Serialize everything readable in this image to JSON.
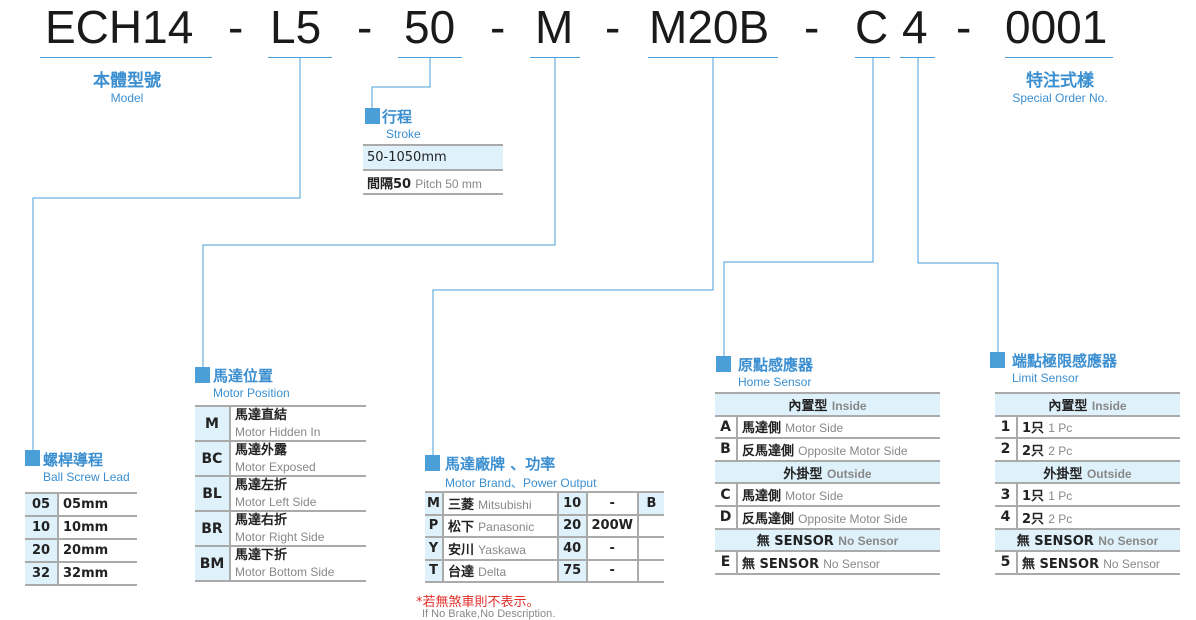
{
  "code": {
    "parts": [
      "ECH14",
      "-",
      "L5",
      "-",
      "50",
      "-",
      "M",
      "-",
      "M20B",
      "-",
      "C",
      "4",
      "-",
      "0001"
    ]
  },
  "model": {
    "zh": "本體型號",
    "en": "Model"
  },
  "special": {
    "zh": "特注式樣",
    "en": "Special Order No."
  },
  "stroke": {
    "zh": "行程",
    "en": "Stroke",
    "rows": [
      {
        "a": "50-1050mm"
      },
      {
        "a": "間隔50",
        "b": "Pitch 50 mm"
      }
    ]
  },
  "lead": {
    "zh": "螺桿導程",
    "en": "Ball Screw Lead",
    "rows": [
      [
        "05",
        "05mm"
      ],
      [
        "10",
        "10mm"
      ],
      [
        "20",
        "20mm"
      ],
      [
        "32",
        "32mm"
      ]
    ]
  },
  "position": {
    "zh": "馬達位置",
    "en": "Motor Position",
    "rows": [
      {
        "k": "M",
        "zh": "馬達直結",
        "en": "Motor Hidden In"
      },
      {
        "k": "BC",
        "zh": "馬達外露",
        "en": "Motor Exposed"
      },
      {
        "k": "BL",
        "zh": "馬達左折",
        "en": "Motor Left Side"
      },
      {
        "k": "BR",
        "zh": "馬達右折",
        "en": "Motor Right Side"
      },
      {
        "k": "BM",
        "zh": "馬達下折",
        "en": "Motor Bottom Side"
      }
    ]
  },
  "brand": {
    "zh": "馬達廠牌 、功率",
    "en": "Motor Brand、Power Output",
    "brake": "B",
    "rows": [
      {
        "k": "M",
        "zh": "三菱",
        "en": "Mitsubishi",
        "p": "10",
        "w": "-"
      },
      {
        "k": "P",
        "zh": "松下",
        "en": "Panasonic",
        "p": "20",
        "w": "200W"
      },
      {
        "k": "Y",
        "zh": "安川",
        "en": "Yaskawa",
        "p": "40",
        "w": "-"
      },
      {
        "k": "T",
        "zh": "台達",
        "en": "Delta",
        "p": "75",
        "w": "-"
      }
    ],
    "note_zh": "*若無煞車則不表示。",
    "note_en": "If No Brake,No Description."
  },
  "home": {
    "zh": "原點感應器",
    "en": "Home Sensor",
    "rows": [
      {
        "h": true,
        "zh": "內置型",
        "en": "Inside"
      },
      {
        "k": "A",
        "zh": "馬達側",
        "en": "Motor Side"
      },
      {
        "k": "B",
        "zh": "反馬達側",
        "en": "Opposite Motor Side"
      },
      {
        "h": true,
        "zh": "外掛型",
        "en": "Outside"
      },
      {
        "k": "C",
        "zh": "馬達側",
        "en": "Motor Side"
      },
      {
        "k": "D",
        "zh": "反馬達側",
        "en": "Opposite Motor Side"
      },
      {
        "h": true,
        "zh": "無 SENSOR",
        "en": "No Sensor"
      },
      {
        "k": "E",
        "zh": "無 SENSOR",
        "en": "No Sensor"
      }
    ]
  },
  "limit": {
    "zh": "端點極限感應器",
    "en": "Limit Sensor",
    "rows": [
      {
        "h": true,
        "zh": "內置型",
        "en": "Inside"
      },
      {
        "k": "1",
        "zh": "1只",
        "en": "1 Pc"
      },
      {
        "k": "2",
        "zh": "2只",
        "en": "2 Pc"
      },
      {
        "h": true,
        "zh": "外掛型",
        "en": "Outside"
      },
      {
        "k": "3",
        "zh": "1只",
        "en": "1 Pc"
      },
      {
        "k": "4",
        "zh": "2只",
        "en": "2 Pc"
      },
      {
        "h": true,
        "zh": "無 SENSOR",
        "en": "No Sensor"
      },
      {
        "k": "5",
        "zh": "無 SENSOR",
        "en": "No Sensor"
      }
    ]
  },
  "colors": {
    "accent": "#4a9fd8",
    "header_bg": "#dff1fb",
    "note": "#e0302a"
  }
}
